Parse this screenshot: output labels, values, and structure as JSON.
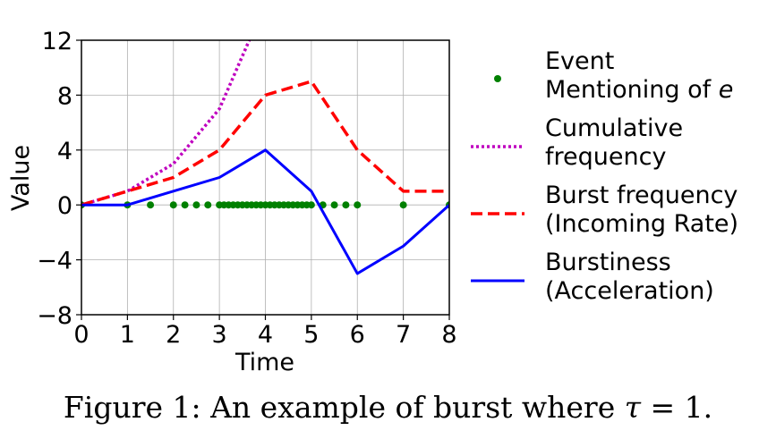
{
  "chart_data": {
    "type": "line",
    "xlabel": "Time",
    "ylabel": "Value",
    "xlim": [
      0,
      8
    ],
    "ylim": [
      -8,
      12
    ],
    "xticks": [
      0,
      1,
      2,
      3,
      4,
      5,
      6,
      7,
      8
    ],
    "yticks": [
      -8,
      -4,
      0,
      4,
      8,
      12
    ],
    "xtick_labels": [
      "0",
      "1",
      "2",
      "3",
      "4",
      "5",
      "6",
      "7",
      "8"
    ],
    "ytick_labels": [
      "−8",
      "−4",
      "0",
      "4",
      "8",
      "12"
    ],
    "grid": true,
    "legend_position": "right, outside plot",
    "series": [
      {
        "name_lines": [
          "Event",
          "Mentioning of "
        ],
        "name_math": "e",
        "style": "scatter-dots",
        "color": "#008000",
        "x": [
          0,
          1,
          1.5,
          2,
          2.25,
          2.5,
          2.75,
          3,
          3.1,
          3.2,
          3.3,
          3.4,
          3.5,
          3.6,
          3.7,
          3.8,
          3.9,
          4,
          4.1,
          4.2,
          4.3,
          4.4,
          4.5,
          4.6,
          4.7,
          4.8,
          4.9,
          5,
          5.25,
          5.5,
          5.75,
          6,
          7,
          8
        ],
        "y": [
          0,
          0,
          0,
          0,
          0,
          0,
          0,
          0,
          0,
          0,
          0,
          0,
          0,
          0,
          0,
          0,
          0,
          0,
          0,
          0,
          0,
          0,
          0,
          0,
          0,
          0,
          0,
          0,
          0,
          0,
          0,
          0,
          0,
          0
        ]
      },
      {
        "name_lines": [
          "Cumulative",
          "frequency"
        ],
        "style": "dotted",
        "color": "#bf00bf",
        "x": [
          0,
          1,
          2,
          3,
          3.65
        ],
        "y": [
          0,
          1,
          3,
          7,
          12
        ]
      },
      {
        "name_lines": [
          "Burst frequency",
          "(Incoming Rate)"
        ],
        "style": "dashed",
        "color": "#ff0000",
        "x": [
          0,
          1,
          2,
          3,
          4,
          5,
          6,
          7,
          8
        ],
        "y": [
          0,
          1,
          2,
          4,
          8,
          9,
          4,
          1,
          1
        ]
      },
      {
        "name_lines": [
          "Burstiness",
          "(Acceleration)"
        ],
        "style": "solid",
        "color": "#0000ff",
        "x": [
          0,
          1,
          2,
          3,
          4,
          5,
          6,
          7,
          8
        ],
        "y": [
          0,
          0,
          1,
          2,
          4,
          1,
          -5,
          -3,
          0
        ]
      }
    ]
  },
  "caption": {
    "text": "Figure 1: An example of burst where ",
    "math_var": "τ",
    "math_rest": " = 1."
  }
}
